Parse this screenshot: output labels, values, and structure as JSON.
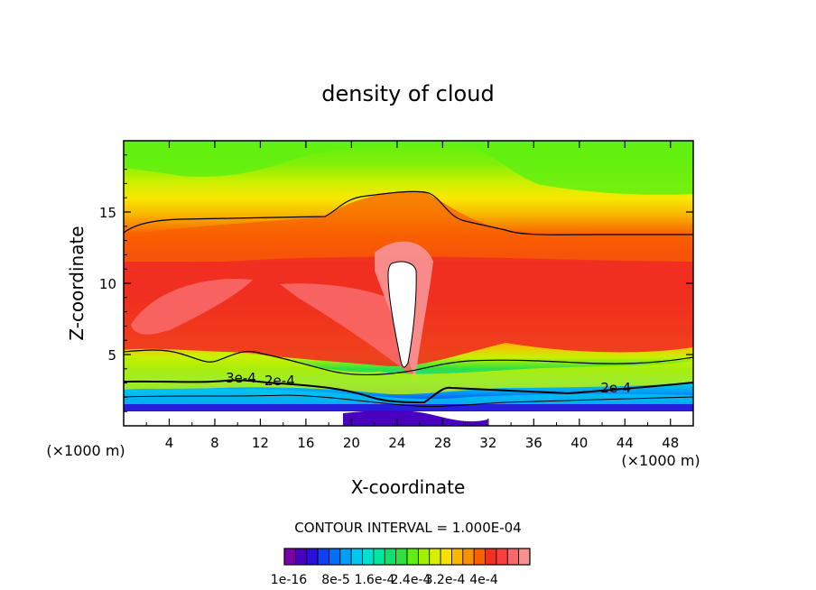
{
  "chart_data": {
    "type": "heatmap",
    "title": "density of cloud",
    "xlabel": "X-coordinate",
    "ylabel": "Z-coordinate",
    "x_unit_left": "(×1000 m)",
    "x_unit_right": "(×1000 m)",
    "xlim": [
      0,
      50
    ],
    "ylim": [
      0,
      20
    ],
    "x_ticks": [
      4,
      8,
      12,
      16,
      20,
      24,
      28,
      32,
      36,
      40,
      44,
      48
    ],
    "y_ticks": [
      5,
      10,
      15
    ],
    "contour_interval_text": "CONTOUR INTERVAL = 1.000E-04",
    "colorbar_labels": [
      "1e-16",
      "8e-5",
      "1.6e-4",
      "2.4e-4",
      "3.2e-4",
      "4e-4"
    ],
    "colorbar_colors": [
      "#7a00a8",
      "#4a00c0",
      "#2a10d8",
      "#1040f0",
      "#0070f8",
      "#00a0f8",
      "#00c8f0",
      "#00e0d0",
      "#00e8a0",
      "#10e070",
      "#30e040",
      "#60f010",
      "#a0f000",
      "#d8f000",
      "#f8e000",
      "#f8b800",
      "#f89000",
      "#f86000",
      "#f03020",
      "#f84040",
      "#f86868",
      "#f89090"
    ],
    "contour_labels": [
      {
        "text": "2e-4",
        "x": 13.7,
        "z": 3.1
      },
      {
        "text": "2e-4",
        "x": 43.2,
        "z": 2.6
      },
      {
        "text": "3e-4",
        "x": 10.3,
        "z": 3.3
      }
    ]
  }
}
